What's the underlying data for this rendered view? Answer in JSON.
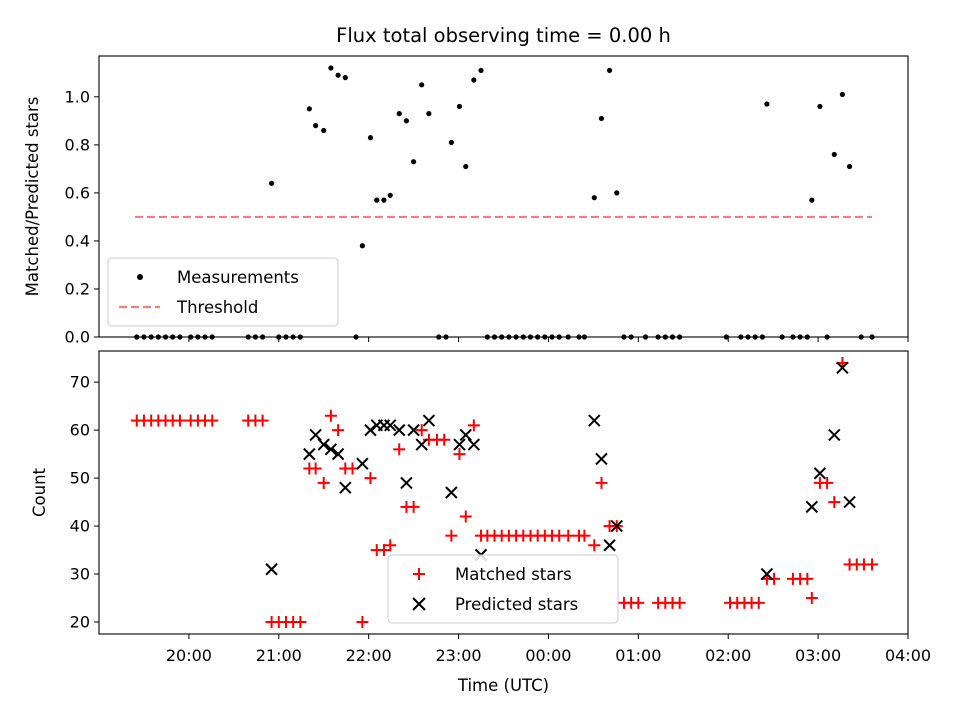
{
  "chart_data": [
    {
      "type": "scatter",
      "title": "Flux total observing time = 0.00 h",
      "xlabel": "",
      "ylabel": "Matched/Predicted stars",
      "xlim": [
        19.0,
        28.0
      ],
      "ylim": [
        0.0,
        1.17
      ],
      "yticks": [
        "0.0",
        "0.2",
        "0.4",
        "0.6",
        "0.8",
        "1.0"
      ],
      "legend_position": "lower-left",
      "legend": [
        "Measurements",
        "Threshold"
      ],
      "colors": {
        "measurements": "#000000",
        "threshold": "#f08080"
      },
      "threshold": {
        "name": "Threshold",
        "y": 0.5,
        "x_start": 19.4,
        "x_end": 27.6
      },
      "series": [
        {
          "name": "Measurements",
          "points": [
            [
              19.42,
              0
            ],
            [
              19.5,
              0
            ],
            [
              19.58,
              0
            ],
            [
              19.66,
              0
            ],
            [
              19.74,
              0
            ],
            [
              19.82,
              0
            ],
            [
              19.9,
              0
            ],
            [
              20.02,
              0
            ],
            [
              20.1,
              0
            ],
            [
              20.18,
              0
            ],
            [
              20.26,
              0
            ],
            [
              20.66,
              0
            ],
            [
              20.74,
              0
            ],
            [
              20.82,
              0
            ],
            [
              21.0,
              0
            ],
            [
              21.08,
              0
            ],
            [
              21.16,
              0
            ],
            [
              21.24,
              0
            ],
            [
              21.86,
              0
            ],
            [
              22.78,
              0
            ],
            [
              22.86,
              0
            ],
            [
              23.32,
              0
            ],
            [
              23.4,
              0
            ],
            [
              23.48,
              0
            ],
            [
              23.56,
              0
            ],
            [
              23.64,
              0
            ],
            [
              23.72,
              0
            ],
            [
              23.8,
              0
            ],
            [
              23.88,
              0
            ],
            [
              23.96,
              0
            ],
            [
              24.04,
              0
            ],
            [
              24.12,
              0
            ],
            [
              24.22,
              0
            ],
            [
              24.34,
              0
            ],
            [
              24.4,
              0
            ],
            [
              24.84,
              0
            ],
            [
              24.92,
              0
            ],
            [
              25.08,
              0
            ],
            [
              25.22,
              0
            ],
            [
              25.3,
              0
            ],
            [
              25.38,
              0
            ],
            [
              25.46,
              0
            ],
            [
              25.98,
              0
            ],
            [
              26.14,
              0
            ],
            [
              26.22,
              0
            ],
            [
              26.3,
              0
            ],
            [
              26.38,
              0
            ],
            [
              26.6,
              0
            ],
            [
              26.72,
              0
            ],
            [
              26.8,
              0
            ],
            [
              26.88,
              0
            ],
            [
              27.1,
              0
            ],
            [
              27.48,
              0
            ],
            [
              27.6,
              0
            ],
            [
              20.92,
              0.64
            ],
            [
              21.34,
              0.95
            ],
            [
              21.41,
              0.88
            ],
            [
              21.5,
              0.86
            ],
            [
              21.58,
              1.12
            ],
            [
              21.66,
              1.09
            ],
            [
              21.74,
              1.08
            ],
            [
              21.93,
              0.38
            ],
            [
              22.02,
              0.83
            ],
            [
              22.09,
              0.57
            ],
            [
              22.17,
              0.57
            ],
            [
              22.24,
              0.59
            ],
            [
              22.34,
              0.93
            ],
            [
              22.42,
              0.9
            ],
            [
              22.5,
              0.73
            ],
            [
              22.59,
              1.05
            ],
            [
              22.67,
              0.93
            ],
            [
              22.92,
              0.81
            ],
            [
              23.01,
              0.96
            ],
            [
              23.08,
              0.71
            ],
            [
              23.17,
              1.07
            ],
            [
              23.25,
              1.11
            ],
            [
              24.51,
              0.58
            ],
            [
              24.59,
              0.91
            ],
            [
              24.68,
              1.11
            ],
            [
              24.76,
              0.6
            ],
            [
              26.43,
              0.97
            ],
            [
              26.93,
              0.57
            ],
            [
              27.02,
              0.96
            ],
            [
              27.18,
              0.76
            ],
            [
              27.27,
              1.01
            ],
            [
              27.35,
              0.71
            ]
          ]
        }
      ]
    },
    {
      "type": "scatter",
      "title": "",
      "xlabel": "Time (UTC)",
      "ylabel": "Count",
      "xlim": [
        19.0,
        28.0
      ],
      "ylim": [
        17.5,
        76.5
      ],
      "xticks": [
        {
          "x": 20,
          "label": "20:00"
        },
        {
          "x": 21,
          "label": "21:00"
        },
        {
          "x": 22,
          "label": "22:00"
        },
        {
          "x": 23,
          "label": "23:00"
        },
        {
          "x": 24,
          "label": "00:00"
        },
        {
          "x": 25,
          "label": "01:00"
        },
        {
          "x": 26,
          "label": "02:00"
        },
        {
          "x": 27,
          "label": "03:00"
        },
        {
          "x": 28,
          "label": "04:00"
        }
      ],
      "yticks": [
        "20",
        "30",
        "40",
        "50",
        "60",
        "70"
      ],
      "legend_position": "lower-center",
      "legend": [
        "Matched stars",
        "Predicted stars"
      ],
      "colors": {
        "matched": "#ff0000",
        "predicted": "#000000"
      },
      "series": [
        {
          "name": "Matched stars",
          "marker": "plus",
          "points": [
            [
              19.42,
              62
            ],
            [
              19.5,
              62
            ],
            [
              19.58,
              62
            ],
            [
              19.66,
              62
            ],
            [
              19.74,
              62
            ],
            [
              19.82,
              62
            ],
            [
              19.9,
              62
            ],
            [
              20.02,
              62
            ],
            [
              20.1,
              62
            ],
            [
              20.18,
              62
            ],
            [
              20.26,
              62
            ],
            [
              20.66,
              62
            ],
            [
              20.74,
              62
            ],
            [
              20.82,
              62
            ],
            [
              20.92,
              20
            ],
            [
              21.0,
              20
            ],
            [
              21.08,
              20
            ],
            [
              21.16,
              20
            ],
            [
              21.24,
              20
            ],
            [
              21.34,
              52
            ],
            [
              21.41,
              52
            ],
            [
              21.5,
              49
            ],
            [
              21.58,
              63
            ],
            [
              21.66,
              60
            ],
            [
              21.74,
              52
            ],
            [
              21.82,
              52
            ],
            [
              21.93,
              20
            ],
            [
              22.02,
              50
            ],
            [
              22.09,
              35
            ],
            [
              22.17,
              35
            ],
            [
              22.24,
              36
            ],
            [
              22.34,
              56
            ],
            [
              22.42,
              44
            ],
            [
              22.5,
              44
            ],
            [
              22.59,
              60
            ],
            [
              22.67,
              58
            ],
            [
              22.76,
              58
            ],
            [
              22.84,
              58
            ],
            [
              22.92,
              38
            ],
            [
              23.01,
              55
            ],
            [
              23.08,
              42
            ],
            [
              23.17,
              61
            ],
            [
              23.25,
              38
            ],
            [
              23.32,
              38
            ],
            [
              23.4,
              38
            ],
            [
              23.48,
              38
            ],
            [
              23.56,
              38
            ],
            [
              23.64,
              38
            ],
            [
              23.72,
              38
            ],
            [
              23.8,
              38
            ],
            [
              23.88,
              38
            ],
            [
              23.96,
              38
            ],
            [
              24.04,
              38
            ],
            [
              24.12,
              38
            ],
            [
              24.22,
              38
            ],
            [
              24.34,
              38
            ],
            [
              24.4,
              38
            ],
            [
              24.51,
              36
            ],
            [
              24.59,
              49
            ],
            [
              24.68,
              40
            ],
            [
              24.76,
              40
            ],
            [
              24.84,
              24
            ],
            [
              24.92,
              24
            ],
            [
              25.0,
              24
            ],
            [
              25.22,
              24
            ],
            [
              25.3,
              24
            ],
            [
              25.38,
              24
            ],
            [
              25.46,
              24
            ],
            [
              26.02,
              24
            ],
            [
              26.1,
              24
            ],
            [
              26.18,
              24
            ],
            [
              26.26,
              24
            ],
            [
              26.34,
              24
            ],
            [
              26.43,
              29
            ],
            [
              26.51,
              29
            ],
            [
              26.72,
              29
            ],
            [
              26.8,
              29
            ],
            [
              26.88,
              29
            ],
            [
              26.93,
              25
            ],
            [
              27.02,
              49
            ],
            [
              27.1,
              49
            ],
            [
              27.18,
              45
            ],
            [
              27.27,
              74
            ],
            [
              27.35,
              32
            ],
            [
              27.43,
              32
            ],
            [
              27.51,
              32
            ],
            [
              27.6,
              32
            ]
          ]
        },
        {
          "name": "Predicted stars",
          "marker": "x",
          "points": [
            [
              20.92,
              31
            ],
            [
              21.34,
              55
            ],
            [
              21.41,
              59
            ],
            [
              21.5,
              57
            ],
            [
              21.58,
              56
            ],
            [
              21.66,
              55
            ],
            [
              21.74,
              48
            ],
            [
              21.93,
              53
            ],
            [
              22.02,
              60
            ],
            [
              22.09,
              61
            ],
            [
              22.17,
              61
            ],
            [
              22.24,
              61
            ],
            [
              22.34,
              60
            ],
            [
              22.42,
              49
            ],
            [
              22.5,
              60
            ],
            [
              22.59,
              57
            ],
            [
              22.67,
              62
            ],
            [
              22.92,
              47
            ],
            [
              23.01,
              57
            ],
            [
              23.08,
              59
            ],
            [
              23.17,
              57
            ],
            [
              23.25,
              34
            ],
            [
              24.51,
              62
            ],
            [
              24.59,
              54
            ],
            [
              24.68,
              36
            ],
            [
              24.76,
              40
            ],
            [
              26.43,
              30
            ],
            [
              26.93,
              44
            ],
            [
              27.02,
              51
            ],
            [
              27.18,
              59
            ],
            [
              27.27,
              73
            ],
            [
              27.35,
              45
            ]
          ]
        }
      ]
    }
  ]
}
